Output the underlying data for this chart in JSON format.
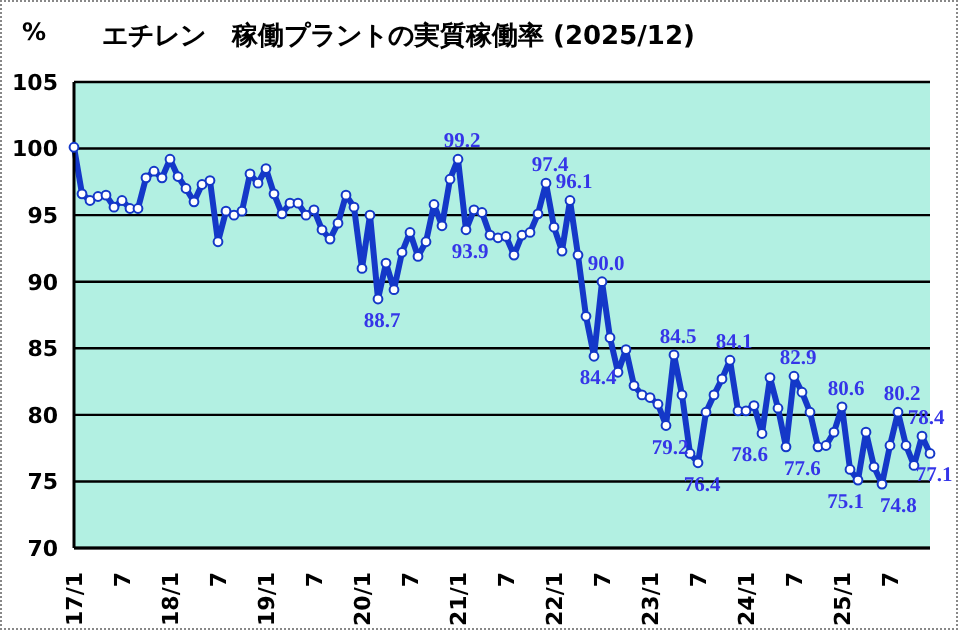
{
  "chart_data": {
    "type": "line",
    "title": "エチレン　稼働プラントの実質稼働率 (2025/12)",
    "ylabel": "%",
    "categories": [
      "17/1",
      null,
      null,
      null,
      null,
      null,
      "7",
      null,
      null,
      null,
      null,
      null,
      "18/1",
      null,
      null,
      null,
      null,
      null,
      "7",
      null,
      null,
      null,
      null,
      null,
      "19/1",
      null,
      null,
      null,
      null,
      null,
      "7",
      null,
      null,
      null,
      null,
      null,
      "20/1",
      null,
      null,
      null,
      null,
      null,
      "7",
      null,
      null,
      null,
      null,
      null,
      "21/1",
      null,
      null,
      null,
      null,
      null,
      "7",
      null,
      null,
      null,
      null,
      null,
      "22/1",
      null,
      null,
      null,
      null,
      null,
      "7",
      null,
      null,
      null,
      null,
      null,
      "23/1",
      null,
      null,
      null,
      null,
      null,
      "7",
      null,
      null,
      null,
      null,
      null,
      "24/1",
      null,
      null,
      null,
      null,
      null,
      "7",
      null,
      null,
      null,
      null,
      null,
      "25/1",
      null,
      null,
      null,
      null,
      null,
      "7",
      null,
      null,
      null,
      null,
      null
    ],
    "series": [
      {
        "color": "#1438c8",
        "values": [
          100.1,
          96.6,
          96.1,
          96.4,
          96.5,
          95.6,
          96.1,
          95.5,
          95.5,
          97.8,
          98.3,
          97.8,
          99.2,
          97.9,
          97.0,
          96.0,
          97.3,
          97.6,
          93.0,
          95.3,
          95.0,
          95.3,
          98.1,
          97.4,
          98.5,
          96.6,
          95.1,
          95.9,
          95.9,
          95.0,
          95.4,
          93.9,
          93.2,
          94.4,
          96.5,
          95.6,
          91.0,
          95.0,
          88.7,
          91.4,
          89.4,
          92.2,
          93.7,
          91.9,
          93.0,
          95.8,
          94.2,
          97.7,
          99.2,
          93.9,
          95.4,
          95.2,
          93.5,
          93.3,
          93.4,
          92.0,
          93.5,
          93.7,
          95.1,
          97.4,
          94.1,
          92.3,
          96.1,
          92.0,
          87.4,
          84.4,
          90.0,
          85.8,
          83.2,
          84.9,
          82.2,
          81.5,
          81.3,
          80.8,
          79.2,
          84.5,
          81.5,
          77.1,
          76.4,
          80.2,
          81.5,
          82.7,
          84.1,
          80.3,
          80.3,
          80.7,
          78.6,
          82.8,
          80.5,
          77.6,
          82.9,
          81.7,
          80.2,
          77.6,
          77.7,
          78.7,
          80.6,
          75.9,
          75.1,
          78.7,
          76.1,
          74.8,
          77.7,
          80.2,
          77.7,
          76.2,
          78.4,
          77.1
        ],
        "value_labels": [
          null,
          null,
          null,
          null,
          null,
          null,
          null,
          null,
          null,
          null,
          null,
          null,
          null,
          null,
          null,
          null,
          null,
          null,
          null,
          null,
          null,
          null,
          null,
          null,
          null,
          null,
          null,
          null,
          null,
          null,
          null,
          null,
          null,
          null,
          null,
          null,
          null,
          null,
          "88.7",
          null,
          null,
          null,
          null,
          null,
          null,
          null,
          null,
          null,
          "99.2",
          "93.9",
          null,
          null,
          null,
          null,
          null,
          null,
          null,
          null,
          null,
          "97.4",
          null,
          null,
          "96.1",
          null,
          null,
          "84.4",
          "90.0",
          null,
          null,
          null,
          null,
          null,
          null,
          null,
          "79.2",
          "84.5",
          null,
          null,
          "76.4",
          null,
          null,
          null,
          "84.1",
          null,
          null,
          null,
          "78.6",
          null,
          null,
          "77.6",
          "82.9",
          null,
          null,
          null,
          null,
          null,
          "80.6",
          null,
          "75.1",
          null,
          null,
          "74.8",
          null,
          "80.2",
          null,
          null,
          "78.4",
          "77.1"
        ]
      }
    ],
    "ylim": [
      70,
      105
    ],
    "yticks": [
      70,
      75,
      80,
      85,
      90,
      95,
      100,
      105
    ],
    "grid": "y",
    "marker": "circle",
    "line_style": "solid"
  }
}
